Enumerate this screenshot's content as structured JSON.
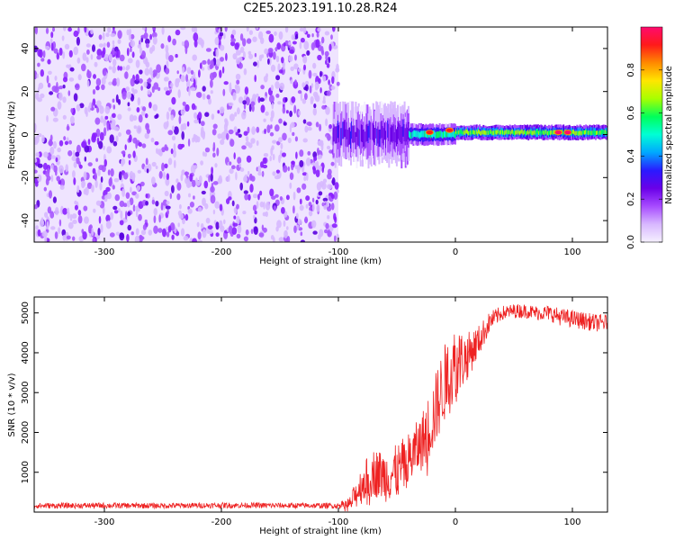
{
  "title": "C2E5.2023.191.10.28.R24",
  "colors": {
    "axis": "#000000",
    "snr_line": "#ee2222",
    "noise": "#8a2be2",
    "colormap": [
      "#f5f0ff",
      "#d8b8ff",
      "#a74bff",
      "#6a00e8",
      "#2a1aff",
      "#00a8ff",
      "#00ffd5",
      "#00ff5a",
      "#a8ff00",
      "#ffe600",
      "#ff8a00",
      "#ff1a1a",
      "#ff0a6e"
    ]
  },
  "chart_data": [
    {
      "type": "heatmap",
      "title": "",
      "xlabel": "Height of straight line (km)",
      "ylabel": "Frequency (Hz)",
      "xlim": [
        -360,
        130
      ],
      "ylim": [
        -50,
        50
      ],
      "xticks": [
        -300,
        -200,
        -100,
        0,
        100
      ],
      "yticks": [
        -40,
        -20,
        0,
        20,
        40
      ],
      "noise_region_x": [
        -360,
        -100
      ],
      "signal_ridge": {
        "description_freq_hz": 0,
        "x_start": -105,
        "x_end": 130,
        "segments": [
          {
            "x": [
              -105,
              -40
            ],
            "freq": 0,
            "spread_hz": 8,
            "amplitude": 0.3
          },
          {
            "x": [
              -40,
              0
            ],
            "freq": 0,
            "spread_hz": 3,
            "amplitude": 0.6
          },
          {
            "x": [
              0,
              130
            ],
            "freq": 1,
            "spread_hz": 2,
            "amplitude": 0.75
          }
        ],
        "hot_spots": [
          {
            "x": -22,
            "freq": 1,
            "amplitude": 0.95
          },
          {
            "x": -5,
            "freq": 2,
            "amplitude": 0.9
          },
          {
            "x": 88,
            "freq": 1,
            "amplitude": 1.0
          },
          {
            "x": 96,
            "freq": 1,
            "amplitude": 1.0
          }
        ]
      },
      "colorbar": {
        "label": "Normalized spectral amplitude",
        "range": [
          0.0,
          1.0
        ],
        "ticks": [
          0.0,
          0.2,
          0.4,
          0.6,
          0.8
        ]
      }
    },
    {
      "type": "line",
      "title": "",
      "xlabel": "Height of straight line (km)",
      "ylabel": "SNR (10 * v/v)",
      "xlim": [
        -360,
        130
      ],
      "ylim": [
        0,
        5400
      ],
      "xticks": [
        -300,
        -200,
        -100,
        0,
        100
      ],
      "yticks": [
        1000,
        2000,
        3000,
        4000,
        5000
      ],
      "series": [
        {
          "x": [
            -360,
            -300,
            -250,
            -200,
            -150,
            -100,
            -90,
            -80,
            -70,
            -60,
            -50,
            -40,
            -30,
            -20,
            -10,
            0,
            10,
            20,
            30,
            40,
            50,
            60,
            70,
            80,
            90,
            100,
            110,
            120,
            130
          ],
          "values": [
            160,
            165,
            160,
            170,
            165,
            160,
            200,
            700,
            1000,
            900,
            1000,
            1300,
            1700,
            2300,
            3200,
            3700,
            3900,
            4300,
            4800,
            5000,
            5050,
            5050,
            5000,
            5000,
            4900,
            4850,
            4800,
            4750,
            4750
          ],
          "noise_amplitude": [
            70,
            70,
            70,
            70,
            70,
            70,
            200,
            500,
            600,
            650,
            700,
            700,
            700,
            900,
            1000,
            1000,
            600,
            400,
            250,
            180,
            180,
            180,
            180,
            200,
            220,
            220,
            220,
            220,
            220
          ]
        }
      ]
    }
  ]
}
